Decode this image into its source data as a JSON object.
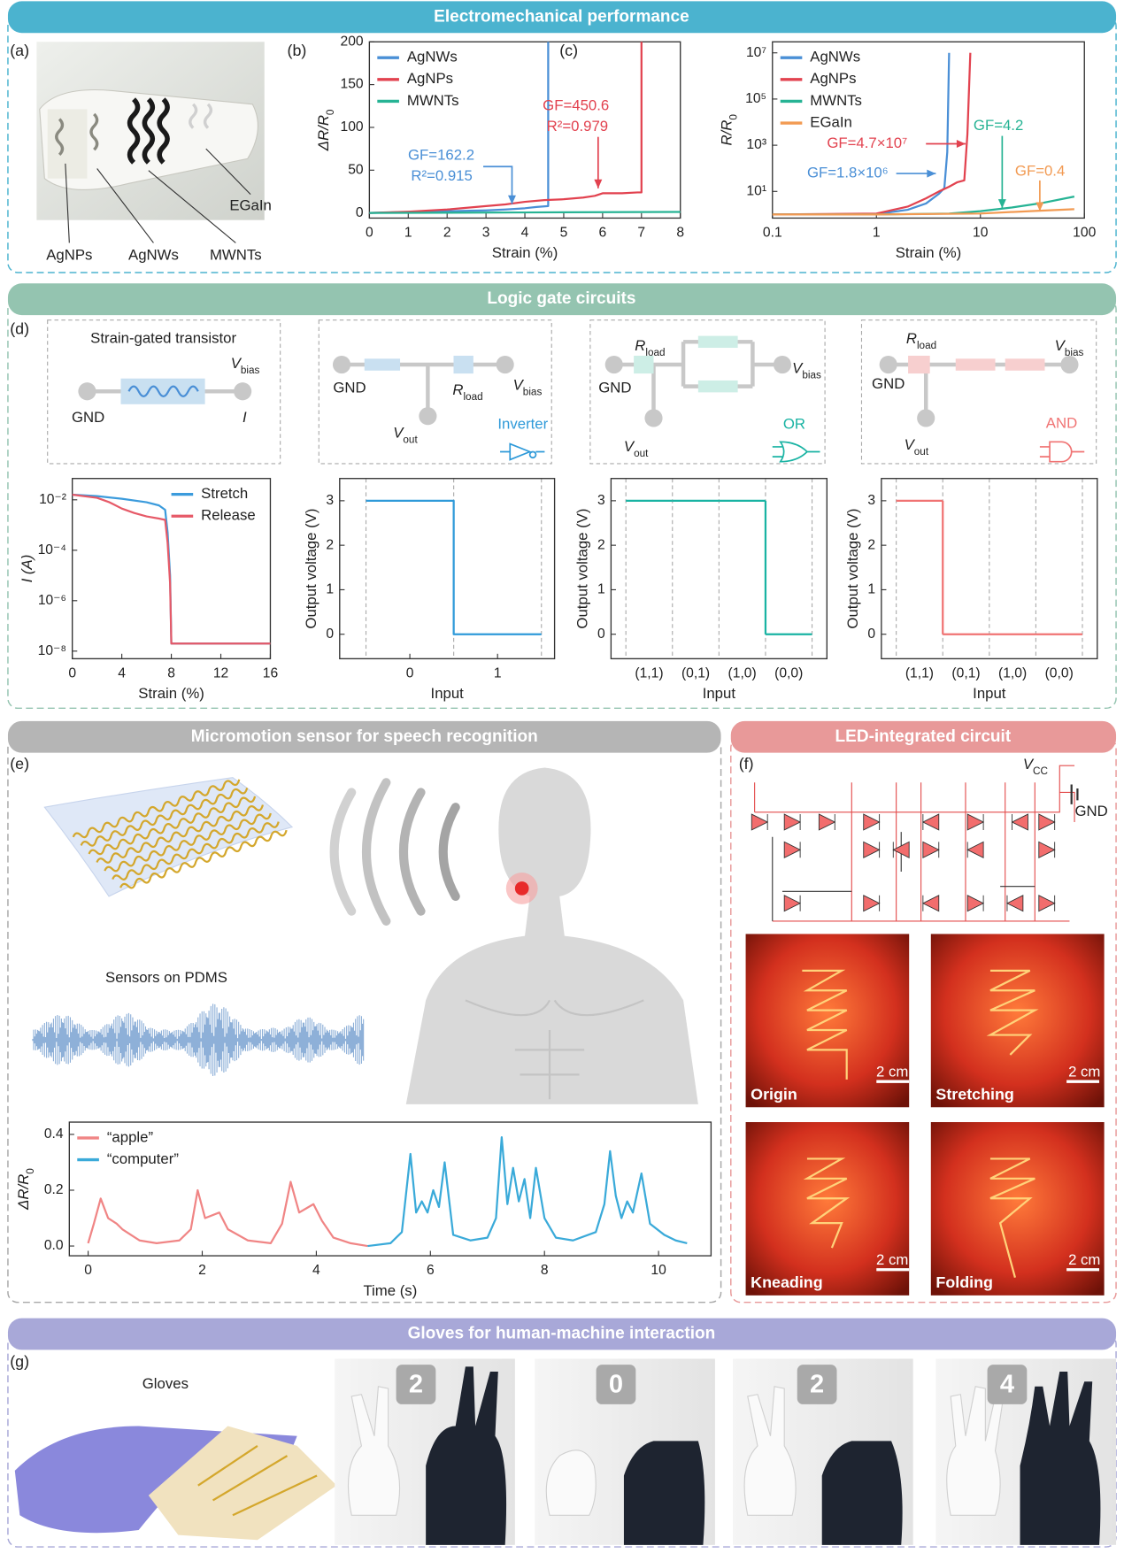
{
  "sections": [
    "Electromechanical performance",
    "Logic gate circuits",
    "Micromotion sensor for speech recognition",
    "LED-integrated circuit",
    "Gloves for human-machine interaction"
  ],
  "panel_labels": [
    "(a)",
    "(b)",
    "(c)",
    "(d)",
    "(e)",
    "(f)",
    "(g)"
  ],
  "photo_a_labels": [
    "AgNPs",
    "AgNWs",
    "MWNTs",
    "EGaIn"
  ],
  "circuits": [
    {
      "title": "Strain-gated transistor",
      "gnd": "GND",
      "v": "V",
      "v_sub": "bias",
      "i": "I"
    },
    {
      "gnd": "GND",
      "r": "R",
      "r_sub": "load",
      "v": "V",
      "v_sub": "bias",
      "vout": "V",
      "vout_sub": "out",
      "name": "Inverter"
    },
    {
      "gnd": "GND",
      "r": "R",
      "r_sub": "load",
      "v": "V",
      "v_sub": "bias",
      "vout": "V",
      "vout_sub": "out",
      "name": "OR"
    },
    {
      "gnd": "GND",
      "r": "R",
      "r_sub": "load",
      "v": "V",
      "v_sub": "bias",
      "vout": "V",
      "vout_sub": "out",
      "name": "AND"
    }
  ],
  "sensor_label": "Sensors on PDMS",
  "led": {
    "vcc": "V",
    "vcc_sub": "CC",
    "gnd": "GND",
    "photos": [
      {
        "label": "Origin",
        "scale": "2 cm"
      },
      {
        "label": "Stretching",
        "scale": "2 cm"
      },
      {
        "label": "Kneading",
        "scale": "2 cm"
      },
      {
        "label": "Folding",
        "scale": "2 cm"
      }
    ]
  },
  "gloves": {
    "label": "Gloves",
    "counts": [
      2,
      0,
      2,
      4
    ]
  },
  "chart_data": [
    {
      "type": "line",
      "xlabel": "Strain (%)",
      "ylabel": {
        "text": "ΔR/R",
        "sub": "0"
      },
      "xlim": [
        0,
        8
      ],
      "xticks": [
        0,
        1,
        2,
        3,
        4,
        5,
        6,
        7,
        8
      ],
      "ylim": [
        -6,
        200
      ],
      "yticks": [
        0,
        50,
        100,
        150,
        200
      ],
      "legend": "upper left",
      "series": [
        {
          "name": "AgNWs",
          "color": "#4a8fd6",
          "x": [
            0,
            1,
            2,
            3,
            3.5,
            4,
            4.3,
            4.6,
            4.6
          ],
          "values": [
            0,
            1,
            2,
            3,
            4,
            5.5,
            7,
            8,
            200
          ]
        },
        {
          "name": "AgNPs",
          "color": "#e2424f",
          "x": [
            0,
            1,
            2,
            3,
            3.5,
            4,
            4.5,
            5,
            5.5,
            5.8,
            6,
            6.5,
            6.9,
            7,
            7
          ],
          "values": [
            0,
            1.5,
            4,
            8,
            10,
            13,
            15,
            16,
            18,
            20,
            23,
            23,
            24,
            24,
            200
          ]
        },
        {
          "name": "MWNTs",
          "color": "#26b394",
          "x": [
            0,
            2,
            4,
            6,
            8
          ],
          "values": [
            0,
            0.3,
            0.6,
            0.9,
            1.2
          ]
        }
      ],
      "annotations": [
        "GF=162.2",
        "R²=0.915",
        "GF=450.6",
        "R²=0.979"
      ]
    },
    {
      "type": "line",
      "xlabel": "Strain (%)",
      "ylabel": {
        "text": "R/R",
        "sub": "0"
      },
      "xscale": "log",
      "yscale": "log",
      "xlim": [
        0.1,
        100
      ],
      "xticks": [
        0.1,
        1,
        10,
        100
      ],
      "ylim": [
        0.7,
        30000000
      ],
      "yticks": [
        {
          "value": 10,
          "label": "10¹"
        },
        {
          "value": 1000,
          "label": "10³"
        },
        {
          "value": 100000,
          "label": "10⁵"
        },
        {
          "value": 10000000,
          "label": "10⁷"
        }
      ],
      "legend": "upper left",
      "series": [
        {
          "name": "AgNWs",
          "color": "#4a8fd6",
          "x": [
            0.1,
            1,
            2,
            3,
            4,
            4.5,
            4.8,
            5
          ],
          "values": [
            1,
            1.05,
            1.6,
            3,
            8,
            14,
            500,
            10000000
          ]
        },
        {
          "name": "AgNPs",
          "color": "#e2424f",
          "x": [
            0.1,
            1,
            2,
            3,
            4,
            5,
            6,
            7,
            7.5,
            8
          ],
          "values": [
            1,
            1.1,
            2.2,
            5,
            10,
            16,
            25,
            30,
            3000,
            10000000
          ]
        },
        {
          "name": "MWNTs",
          "color": "#26b394",
          "x": [
            0.1,
            1,
            5,
            10,
            20,
            40,
            80
          ],
          "values": [
            1,
            1,
            1.1,
            1.4,
            2,
            3.2,
            6
          ]
        },
        {
          "name": "EGaIn",
          "color": "#f29a52",
          "x": [
            0.1,
            1,
            10,
            30,
            80
          ],
          "values": [
            1,
            1,
            1.1,
            1.4,
            1.7
          ]
        }
      ],
      "annotations": [
        "GF=1.8×10⁶",
        "GF=4.7×10⁷",
        "GF=4.2",
        "GF=0.4"
      ]
    },
    {
      "type": "line",
      "xlabel": "Strain (%)",
      "ylabel": "I (A)",
      "yscale": "log",
      "xlim": [
        0,
        16
      ],
      "xticks": [
        0,
        4,
        8,
        12,
        16
      ],
      "ylim": [
        5e-09,
        0.07
      ],
      "yticks": [
        {
          "value": 1e-08,
          "label": "10⁻⁸"
        },
        {
          "value": 1e-06,
          "label": "10⁻⁶"
        },
        {
          "value": 0.0001,
          "label": "10⁻⁴"
        },
        {
          "value": 0.01,
          "label": "10⁻²"
        }
      ],
      "legend": "upper right",
      "series": [
        {
          "name": "Stretch",
          "color": "#3b9bdc",
          "x": [
            0,
            2,
            4,
            6,
            7,
            7.5,
            7.7,
            7.9,
            8,
            16
          ],
          "values": [
            0.016,
            0.014,
            0.011,
            0.008,
            0.006,
            0.004,
            0.0005,
            1e-05,
            2e-08,
            2e-08
          ]
        },
        {
          "name": "Release",
          "color": "#e65a68",
          "x": [
            0,
            2,
            3,
            4,
            5,
            6,
            7,
            7.5,
            7.7,
            7.9,
            8,
            16
          ],
          "values": [
            0.016,
            0.012,
            0.008,
            0.0045,
            0.003,
            0.0022,
            0.0018,
            0.0016,
            0.0002,
            5e-06,
            2e-08,
            2e-08
          ]
        }
      ]
    },
    {
      "type": "line",
      "xlabel": "Input",
      "ylabel": "Output voltage (V)",
      "color": "#2f9ad9",
      "x": [
        -0.5,
        0.5,
        0.5,
        1.5
      ],
      "values": [
        3,
        3,
        0,
        0
      ],
      "xlim": [
        -0.8,
        1.65
      ],
      "xticks": [
        0,
        1
      ],
      "ylim": [
        -0.55,
        3.5
      ],
      "yticks": [
        0,
        1,
        2,
        3
      ]
    },
    {
      "type": "step",
      "xlabel": "Input",
      "ylabel": "Output voltage (V)",
      "color": "#19b3a3",
      "categories": [
        "(1,1)",
        "(0,1)",
        "(1,0)",
        "(0,0)"
      ],
      "values": [
        3,
        3,
        3,
        0
      ],
      "ylim": [
        -0.55,
        3.5
      ],
      "yticks": [
        0,
        1,
        2,
        3
      ]
    },
    {
      "type": "step",
      "xlabel": "Input",
      "ylabel": "Output voltage (V)",
      "color": "#f07373",
      "categories": [
        "(1,1)",
        "(0,1)",
        "(1,0)",
        "(0,0)"
      ],
      "values": [
        3,
        0,
        0,
        0
      ],
      "ylim": [
        -0.55,
        3.5
      ],
      "yticks": [
        0,
        1,
        2,
        3
      ]
    },
    {
      "type": "line",
      "xlabel": "Time (s)",
      "ylabel": {
        "text": "ΔR/R",
        "sub": "0"
      },
      "xlim": [
        -0.33,
        10.92
      ],
      "xticks": [
        0,
        2,
        4,
        6,
        8,
        10
      ],
      "ylim": [
        -0.035,
        0.444
      ],
      "yticks": [
        {
          "value": 0,
          "label": "0.0"
        },
        0.2,
        0.4
      ],
      "legend": "upper left",
      "series": [
        {
          "name": "“apple”",
          "color": "#f08585",
          "x": [
            0,
            0.1,
            0.22,
            0.35,
            0.5,
            0.6,
            0.9,
            1.2,
            1.6,
            1.8,
            1.92,
            2.05,
            2.3,
            2.45,
            2.8,
            3.2,
            3.4,
            3.55,
            3.7,
            3.95,
            4.1,
            4.3,
            4.6,
            4.9
          ],
          "values": [
            0.01,
            0.08,
            0.17,
            0.1,
            0.08,
            0.06,
            0.02,
            0.01,
            0.02,
            0.06,
            0.2,
            0.1,
            0.12,
            0.06,
            0.02,
            0.01,
            0.08,
            0.23,
            0.12,
            0.15,
            0.09,
            0.03,
            0.01,
            0
          ]
        },
        {
          "name": "“computer”",
          "color": "#3aaad9",
          "x": [
            4.9,
            5.3,
            5.5,
            5.65,
            5.75,
            5.85,
            5.95,
            6.05,
            6.15,
            6.25,
            6.4,
            6.7,
            7.0,
            7.15,
            7.25,
            7.35,
            7.45,
            7.55,
            7.65,
            7.75,
            7.85,
            8.0,
            8.2,
            8.5,
            8.9,
            9.05,
            9.15,
            9.25,
            9.35,
            9.45,
            9.55,
            9.7,
            9.85,
            10.1,
            10.3,
            10.5
          ],
          "values": [
            0,
            0.01,
            0.05,
            0.33,
            0.12,
            0.16,
            0.12,
            0.2,
            0.14,
            0.3,
            0.04,
            0.02,
            0.03,
            0.1,
            0.39,
            0.15,
            0.28,
            0.16,
            0.24,
            0.1,
            0.28,
            0.1,
            0.03,
            0.02,
            0.05,
            0.15,
            0.34,
            0.18,
            0.1,
            0.16,
            0.12,
            0.26,
            0.08,
            0.04,
            0.02,
            0.01
          ]
        }
      ]
    }
  ]
}
